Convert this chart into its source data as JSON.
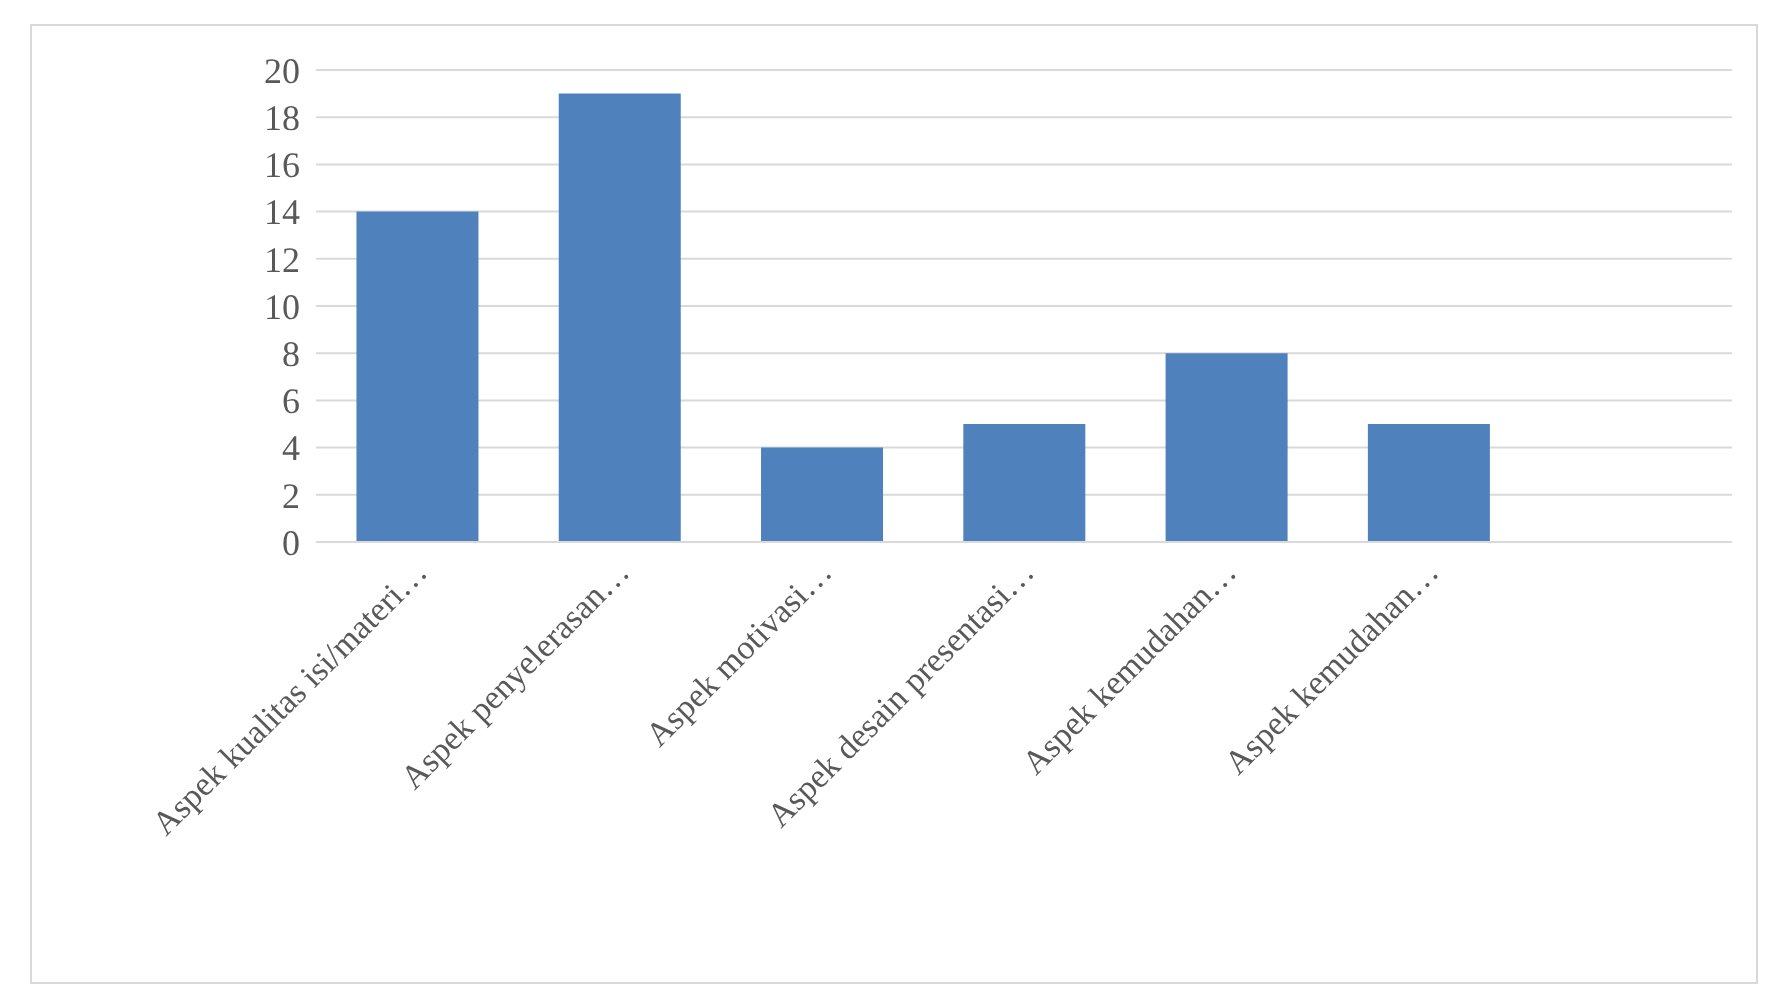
{
  "chart_data": {
    "type": "bar",
    "categories": [
      "Aspek kualitas isi/materi…",
      "Aspek penyelerasan…",
      "Aspek motivasi…",
      "Aspek desain presentasi…",
      "Aspek kemudahan…",
      "Aspek kemudahan…",
      null
    ],
    "values": [
      14,
      19,
      4,
      5,
      8,
      5,
      null
    ],
    "color": "#4f81bd",
    "ylim": [
      0,
      20
    ],
    "yticks": [
      0,
      2,
      4,
      6,
      8,
      10,
      12,
      14,
      16,
      18,
      20
    ],
    "grid": "y"
  }
}
